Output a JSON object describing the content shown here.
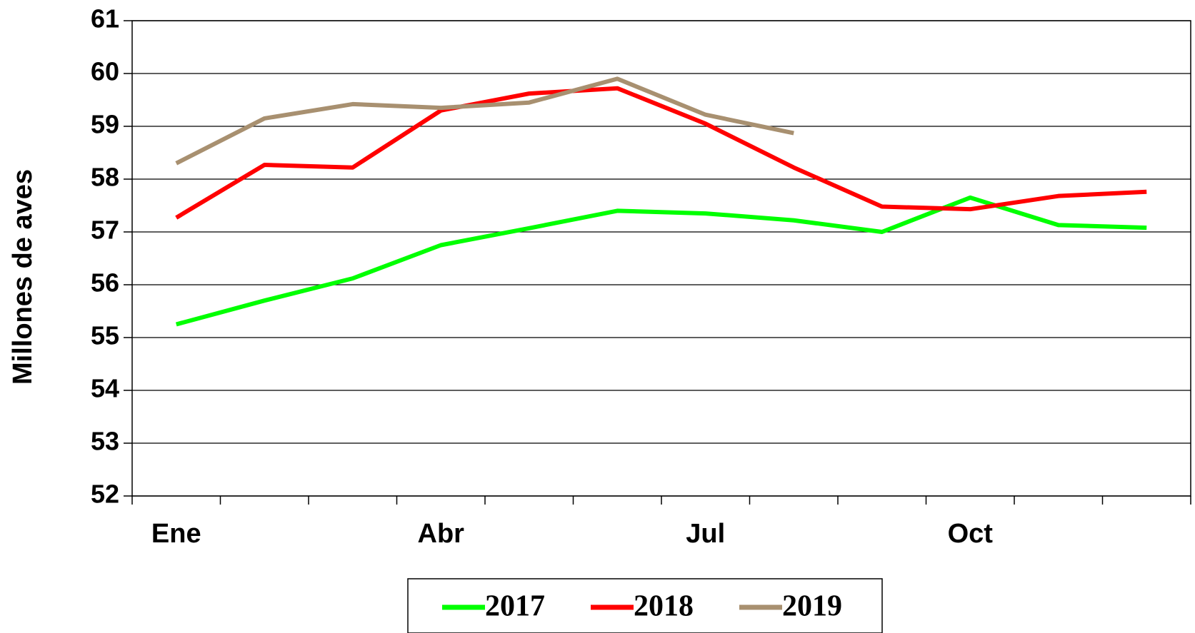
{
  "chart_data": {
    "type": "line",
    "y_label": "Millones de aves",
    "categories": [
      "Ene",
      null,
      null,
      "Abr",
      null,
      null,
      "Jul",
      null,
      null,
      "Oct",
      null,
      null
    ],
    "series": [
      {
        "name": "2017",
        "color": "#00ff00",
        "values": [
          55.25,
          55.7,
          56.12,
          56.75,
          57.07,
          57.4,
          57.35,
          57.22,
          57.0,
          57.65,
          57.13,
          57.08
        ]
      },
      {
        "name": "2018",
        "color": "#ff0000",
        "values": [
          57.27,
          58.27,
          58.22,
          59.3,
          59.62,
          59.72,
          59.05,
          58.22,
          57.48,
          57.43,
          57.68,
          57.76
        ]
      },
      {
        "name": "2019",
        "color": "#a89070",
        "values": [
          58.3,
          59.15,
          59.42,
          59.35,
          59.45,
          59.9,
          59.22,
          58.87,
          null,
          null,
          null,
          null
        ]
      }
    ],
    "ylim": [
      52,
      61
    ],
    "yticks": [
      52,
      53,
      54,
      55,
      56,
      57,
      58,
      59,
      60,
      61
    ],
    "grid": true,
    "legend": "bottom"
  }
}
